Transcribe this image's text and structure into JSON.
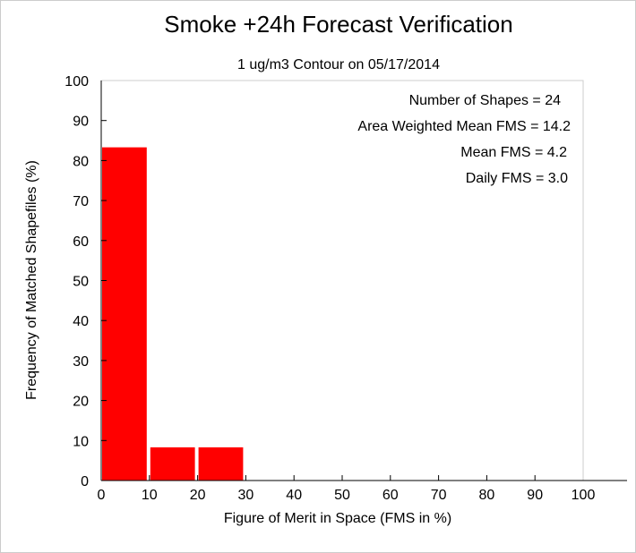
{
  "chart_data": {
    "type": "bar",
    "title": "Smoke +24h Forecast Verification",
    "subtitle": "1 ug/m3 Contour on 05/17/2014",
    "xlabel": "Figure of Merit in Space (FMS in %)",
    "ylabel": "Frequency of Matched Shapefiles (%)",
    "xlim": [
      0,
      100
    ],
    "ylim": [
      0,
      100
    ],
    "x_ticks": [
      "0",
      "10",
      "20",
      "30",
      "40",
      "50",
      "60",
      "70",
      "80",
      "90",
      "100"
    ],
    "y_ticks": [
      "0",
      "10",
      "20",
      "30",
      "40",
      "50",
      "60",
      "70",
      "80",
      "90",
      "100"
    ],
    "bin_edges": [
      0,
      10,
      20,
      30,
      40,
      50,
      60,
      70,
      80,
      90,
      100
    ],
    "values": [
      83.3,
      8.3,
      8.3,
      0,
      0,
      0,
      0,
      0,
      0,
      0
    ],
    "bar_color": "#ff0000",
    "grid": false,
    "annotations": [
      "Number of Shapes = 24",
      "Area Weighted Mean FMS = 14.2",
      "Mean FMS = 4.2",
      "Daily FMS = 3.0"
    ]
  }
}
